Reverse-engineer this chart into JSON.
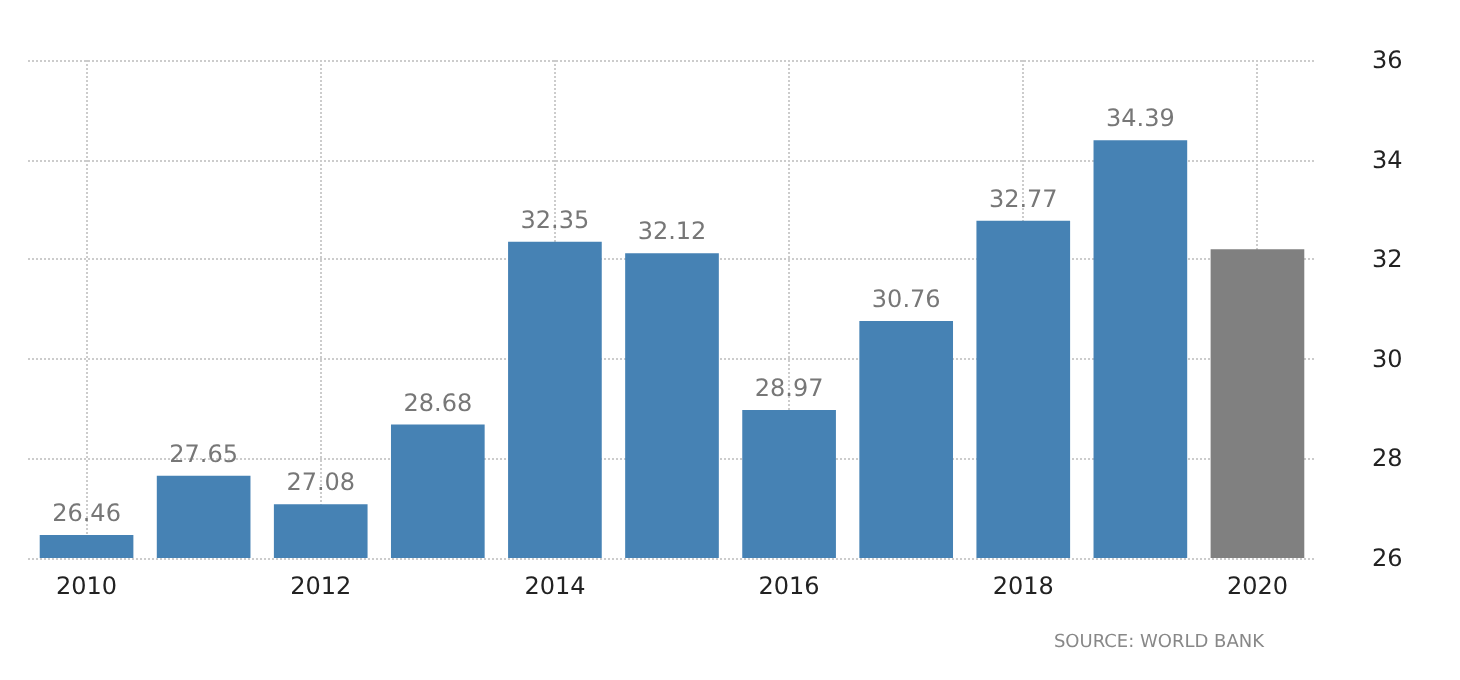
{
  "chart_data": {
    "type": "bar",
    "categories": [
      "2010",
      null,
      "2012",
      null,
      "2014",
      null,
      "2016",
      null,
      "2018",
      null,
      "2020"
    ],
    "values": [
      26.46,
      27.65,
      27.08,
      28.68,
      32.35,
      32.12,
      28.97,
      30.76,
      32.77,
      34.39,
      32.2
    ],
    "value_labels": [
      "26.46",
      "27.65",
      "27.08",
      "28.68",
      "32.35",
      "32.12",
      "28.97",
      "30.76",
      "32.77",
      "34.39",
      null
    ],
    "colors": [
      "#4682b4",
      "#4682b4",
      "#4682b4",
      "#4682b4",
      "#4682b4",
      "#4682b4",
      "#4682b4",
      "#4682b4",
      "#4682b4",
      "#4682b4",
      "#808080"
    ],
    "ylim": [
      26,
      36
    ],
    "yticks": [
      26,
      28,
      30,
      32,
      34,
      36
    ],
    "grid": true,
    "annotations": [
      "SOURCE: WORLD BANK"
    ]
  }
}
